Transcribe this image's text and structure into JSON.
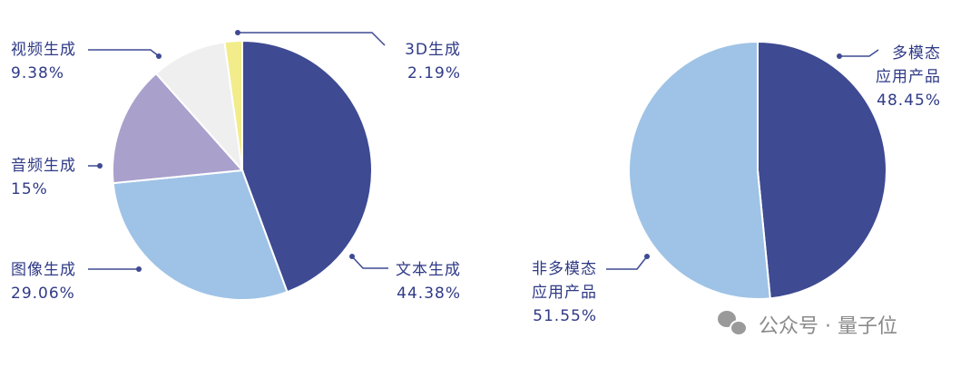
{
  "chart_data": [
    {
      "type": "pie",
      "categories": [
        "文本生成",
        "图像生成",
        "音频生成",
        "视频生成",
        "3D生成"
      ],
      "values": [
        44.38,
        29.06,
        15,
        9.38,
        2.19
      ],
      "value_labels": [
        "44.38%",
        "29.06%",
        "15%",
        "9.38%",
        "2.19%"
      ],
      "colors": [
        "#3e4a92",
        "#9fc3e6",
        "#a9a0cc",
        "#efefef",
        "#f2ec8a"
      ]
    },
    {
      "type": "pie",
      "categories": [
        "多模态\n应用产品",
        "非多模态\n应用产品"
      ],
      "values": [
        48.45,
        51.55
      ],
      "value_labels": [
        "48.45%",
        "51.55%"
      ],
      "colors": [
        "#3e4a92",
        "#9fc3e6"
      ]
    }
  ],
  "watermark": "公众号 · 量子位"
}
